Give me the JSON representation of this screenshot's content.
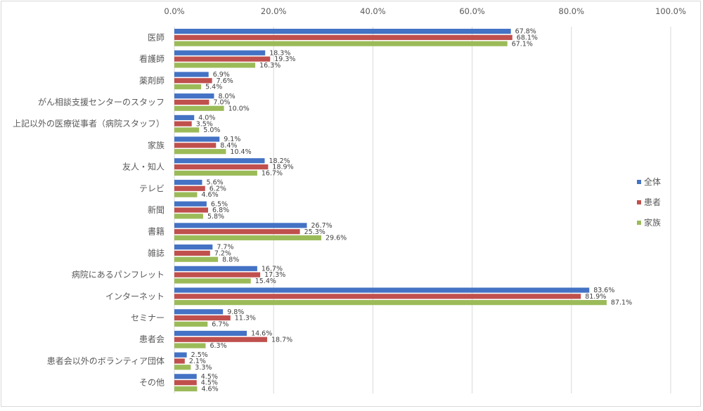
{
  "colors": {
    "series": [
      "#4472C4",
      "#C0504D",
      "#9BBB59"
    ],
    "grid": "#d9d9d9",
    "text": "#595959",
    "label_text": "#404040"
  },
  "chart_data": {
    "type": "bar",
    "orientation": "horizontal",
    "title": "",
    "xlabel": "",
    "ylabel": "",
    "xlim": [
      0,
      100
    ],
    "x_ticks": [
      "0.0%",
      "20.0%",
      "40.0%",
      "60.0%",
      "80.0%",
      "100.0%"
    ],
    "x_tick_values": [
      0,
      20,
      40,
      60,
      80,
      100
    ],
    "x_axis_position": "top",
    "grid": true,
    "legend_position": "right",
    "categories": [
      "医師",
      "看護師",
      "薬剤師",
      "がん相談支援センターのスタッフ",
      "上記以外の医療従事者（病院スタッフ）",
      "家族",
      "友人・知人",
      "テレビ",
      "新聞",
      "書籍",
      "雑誌",
      "病院にあるパンフレット",
      "インターネット",
      "セミナー",
      "患者会",
      "患者会以外のボランティア団体",
      "その他"
    ],
    "series": [
      {
        "name": "全体",
        "values": [
          67.8,
          18.3,
          6.9,
          8.0,
          4.0,
          9.1,
          18.2,
          5.6,
          6.5,
          26.7,
          7.7,
          16.7,
          83.6,
          9.8,
          14.6,
          2.5,
          4.5
        ]
      },
      {
        "name": "患者",
        "values": [
          68.1,
          19.3,
          7.6,
          7.0,
          3.5,
          8.4,
          18.9,
          6.2,
          6.8,
          25.3,
          7.2,
          17.3,
          81.9,
          11.3,
          18.7,
          2.1,
          4.5
        ]
      },
      {
        "name": "家族",
        "values": [
          67.1,
          16.3,
          5.4,
          10.0,
          5.0,
          10.4,
          16.7,
          4.6,
          5.8,
          29.6,
          8.8,
          15.4,
          87.1,
          6.7,
          6.3,
          3.3,
          4.6
        ]
      }
    ]
  }
}
